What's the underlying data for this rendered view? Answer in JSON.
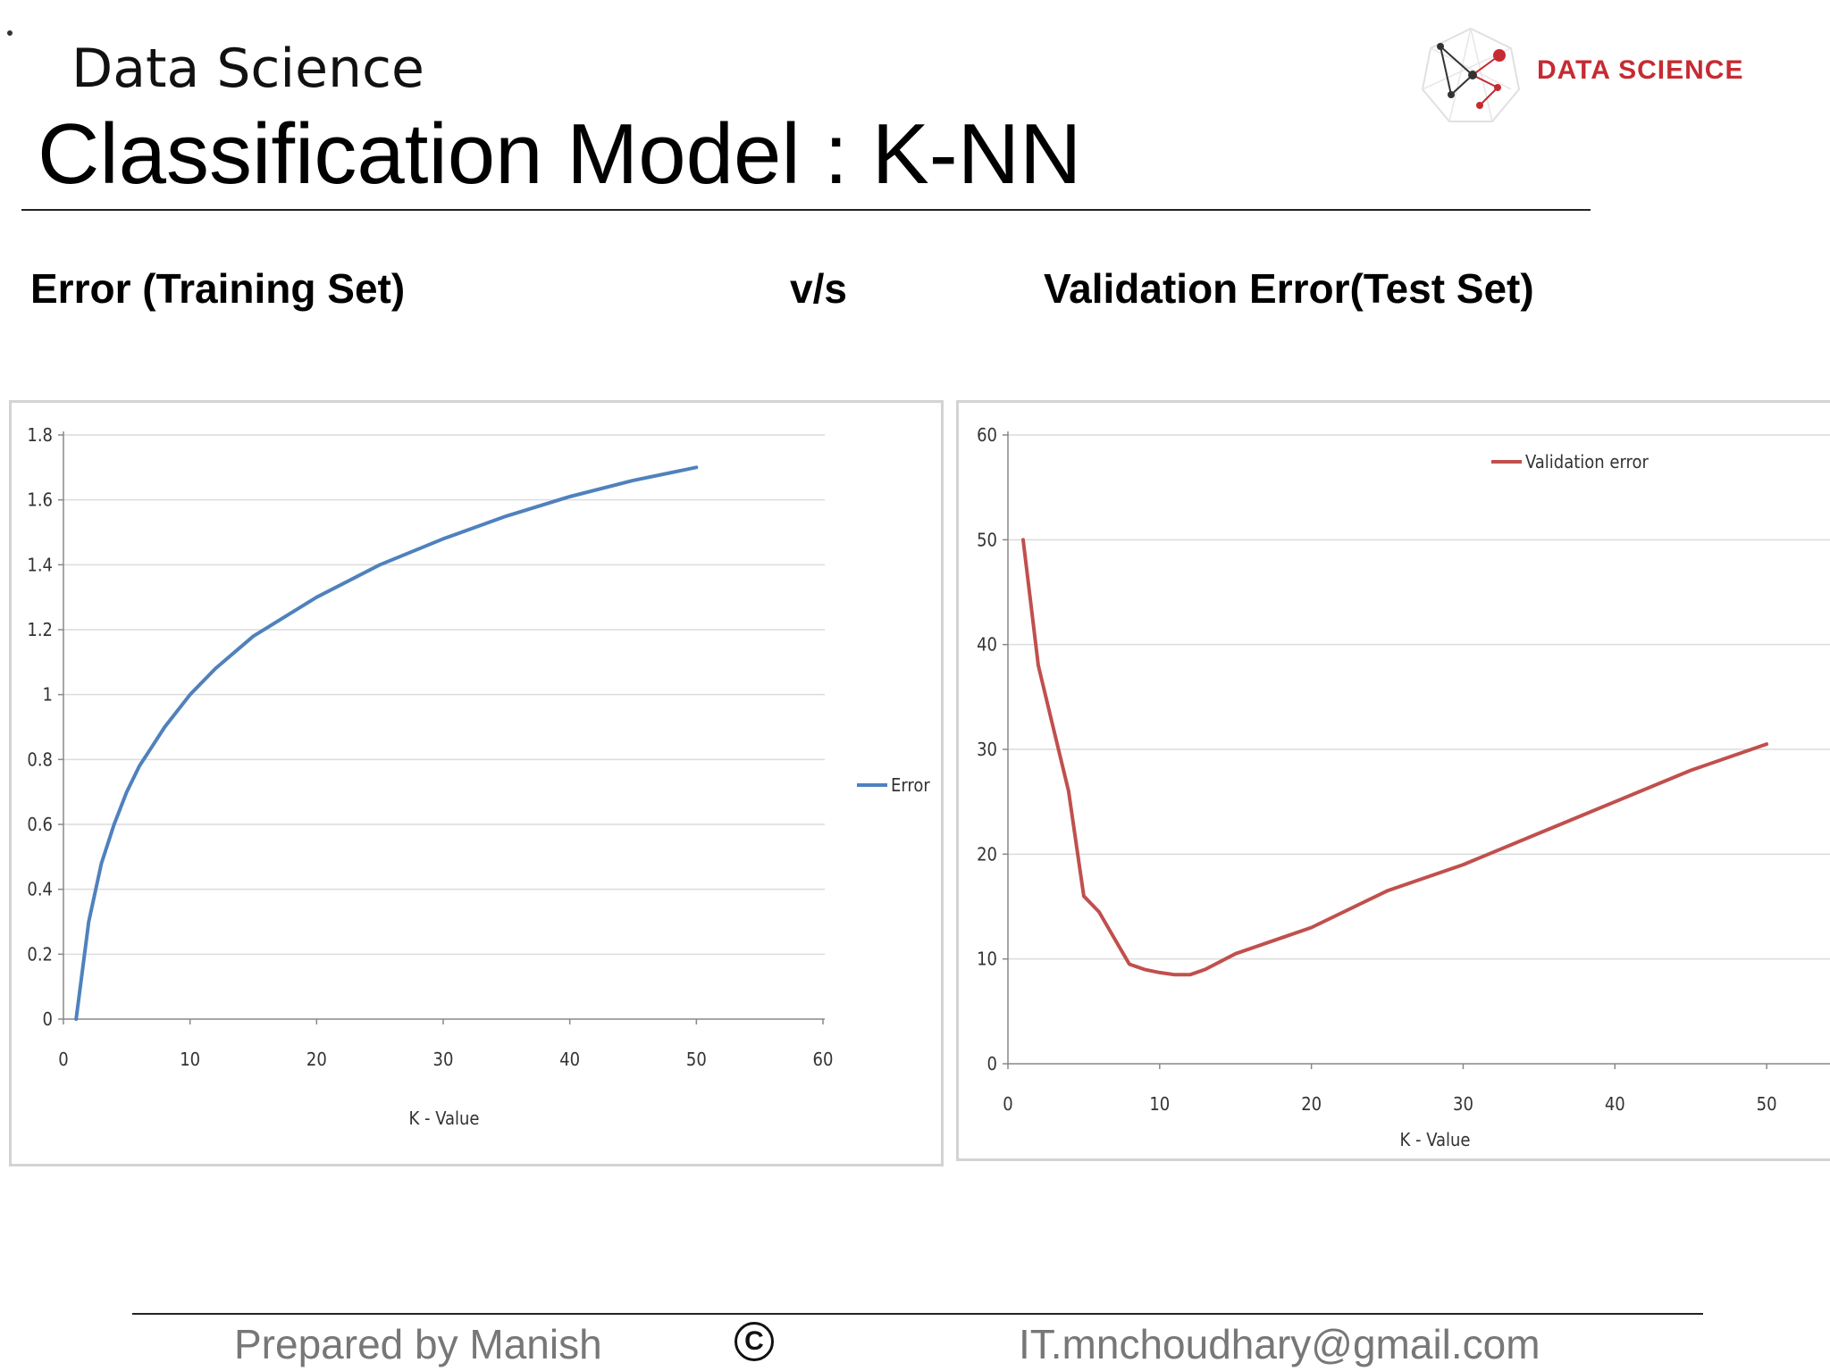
{
  "header": {
    "subtitle": "Data Science",
    "title": "Classification Model : K-NN",
    "logo_text": "DATA SCIENCE"
  },
  "comparison": {
    "left_label": "Error (Training Set)",
    "vs_label": "v/s",
    "right_label": "Validation Error(Test Set)"
  },
  "footer": {
    "author": "Prepared by Manish",
    "copyright_symbol": "C",
    "email": "IT.mnchoudhary@gmail.com"
  },
  "colors": {
    "training_line": "#4f81bd",
    "validation_line": "#c0504d",
    "logo_red": "#c62b32"
  },
  "chart_data": [
    {
      "type": "line",
      "title": "",
      "xlabel": "K - Value",
      "ylabel": "",
      "xlim": [
        0,
        60
      ],
      "ylim": [
        0,
        1.8
      ],
      "x_ticks": [
        "0",
        "10",
        "20",
        "30",
        "40",
        "50",
        "60"
      ],
      "y_ticks": [
        "0",
        "0.2",
        "0.4",
        "0.6",
        "0.8",
        "1",
        "1.2",
        "1.4",
        "1.6",
        "1.8"
      ],
      "grid": true,
      "legend_position": "right",
      "series": [
        {
          "name": "Error",
          "color": "#4f81bd",
          "x": [
            1,
            2,
            3,
            4,
            5,
            6,
            7,
            8,
            10,
            12,
            15,
            20,
            25,
            30,
            35,
            40,
            45,
            50
          ],
          "y": [
            0,
            0.3,
            0.48,
            0.6,
            0.7,
            0.78,
            0.84,
            0.9,
            1.0,
            1.08,
            1.18,
            1.3,
            1.4,
            1.48,
            1.55,
            1.61,
            1.66,
            1.7
          ]
        }
      ]
    },
    {
      "type": "line",
      "title": "",
      "xlabel": "K - Value",
      "ylabel": "",
      "xlim": [
        0,
        55
      ],
      "ylim": [
        0,
        60
      ],
      "x_ticks": [
        "0",
        "10",
        "20",
        "30",
        "40",
        "50"
      ],
      "y_ticks": [
        "0",
        "10",
        "20",
        "30",
        "40",
        "50",
        "60"
      ],
      "grid": true,
      "legend_position": "top-right",
      "series": [
        {
          "name": "Validation error",
          "color": "#c0504d",
          "x": [
            1,
            2,
            3,
            4,
            5,
            6,
            7,
            8,
            9,
            10,
            11,
            12,
            13,
            15,
            18,
            20,
            25,
            30,
            35,
            40,
            45,
            50
          ],
          "y": [
            50,
            38,
            32,
            26,
            16,
            14.5,
            12,
            9.5,
            9,
            8.7,
            8.5,
            8.5,
            9,
            10.5,
            12,
            13,
            16.5,
            19,
            22,
            25,
            28,
            30.5
          ]
        }
      ]
    }
  ]
}
